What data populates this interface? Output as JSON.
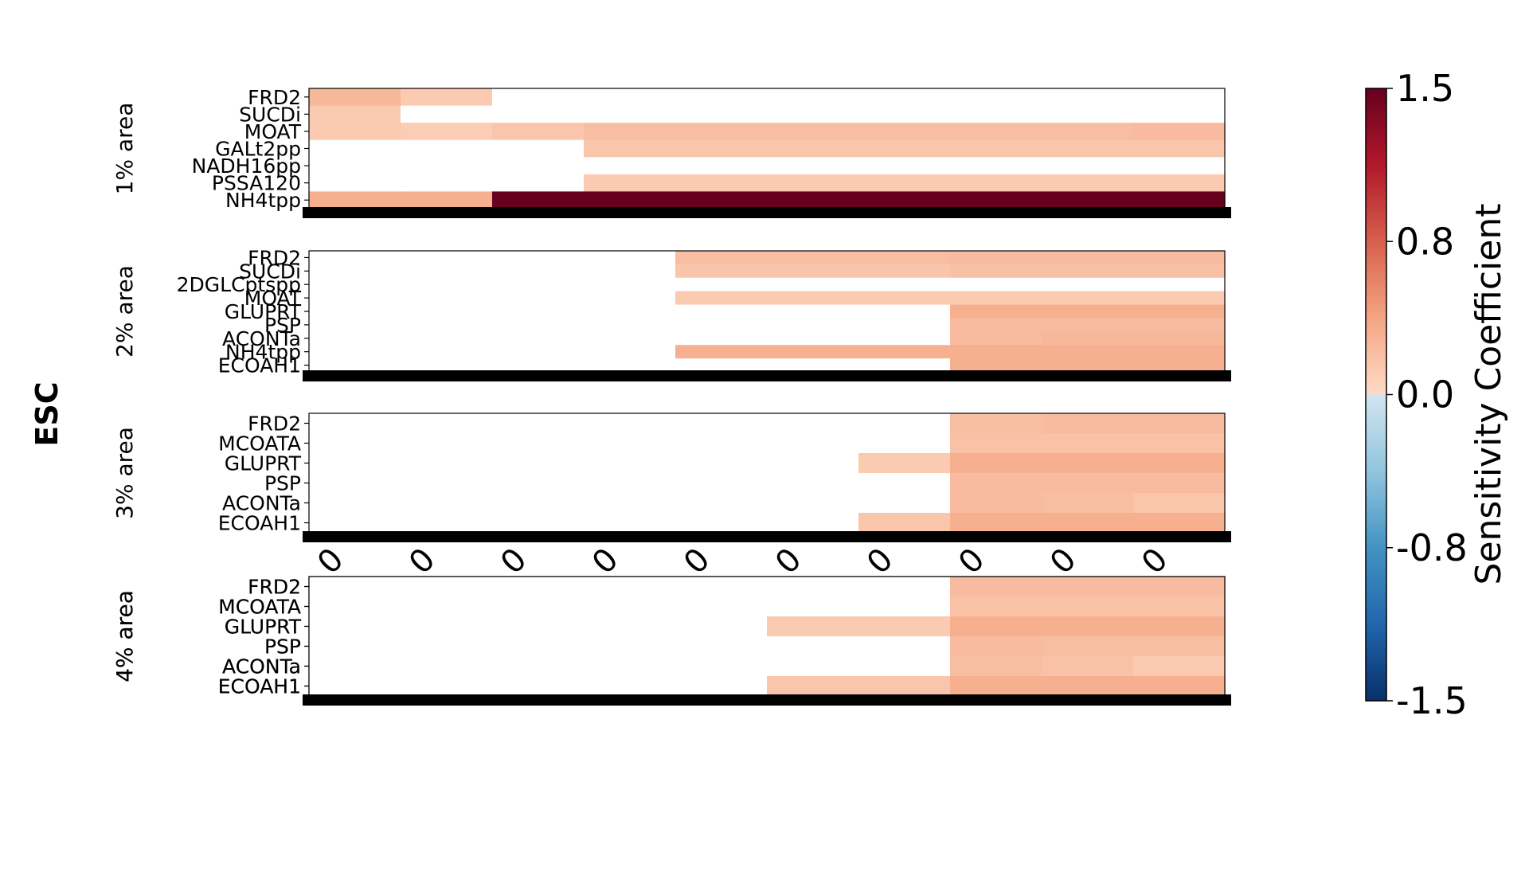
{
  "figure": {
    "row_title": "ESC"
  },
  "colorbar": {
    "label": "Sensitivity Coefficient",
    "range": [
      -1.5,
      1.5
    ],
    "ticks": [
      "1.5",
      "0.8",
      "0.0",
      "-0.8",
      "-1.5"
    ],
    "colors_negative": [
      "#08306b",
      "#2166ac",
      "#4393c3",
      "#92c5de",
      "#d1e5f0"
    ],
    "colors_positive": [
      "#fddbc7",
      "#f4a582",
      "#d6604d",
      "#b2182b",
      "#67001f"
    ]
  },
  "x_tick_labels": [
    "0",
    "0",
    "0",
    "0",
    "0",
    "0",
    "0",
    "0",
    "0",
    "0"
  ],
  "chart_data": [
    {
      "type": "heatmap",
      "ylabel": "1% area",
      "columns": 10,
      "rows": [
        "FRD2",
        "SUCDi",
        "MOAT",
        "GALt2pp",
        "NADH16pp",
        "PSSA120",
        "NH4tpp"
      ],
      "values": [
        [
          0.25,
          0.12,
          0,
          0,
          0,
          0,
          0,
          0,
          0,
          0
        ],
        [
          0.12,
          0,
          0,
          0,
          0,
          0,
          0,
          0,
          0,
          0
        ],
        [
          0.12,
          0.1,
          0.15,
          0.2,
          0.2,
          0.2,
          0.2,
          0.2,
          0.2,
          0.22
        ],
        [
          0,
          0,
          0,
          0.15,
          0.15,
          0.15,
          0.15,
          0.15,
          0.15,
          0.15
        ],
        [
          0,
          0,
          0,
          0,
          0,
          0,
          0,
          0,
          0,
          0
        ],
        [
          0,
          0,
          0,
          0.12,
          0.12,
          0.12,
          0.12,
          0.12,
          0.12,
          0.12
        ],
        [
          0.3,
          0.3,
          1.5,
          1.5,
          1.5,
          1.5,
          1.5,
          1.5,
          1.5,
          1.5
        ]
      ]
    },
    {
      "type": "heatmap",
      "ylabel": "2% area",
      "columns": 10,
      "rows": [
        "FRD2",
        "SUCDi",
        "2DGLCptspp",
        "MOAT",
        "GLUPRT",
        "PSP",
        "ACONTa",
        "NH4tpp",
        "ECOAH1"
      ],
      "values": [
        [
          0,
          0,
          0,
          0,
          0.2,
          0.2,
          0.2,
          0.22,
          0.22,
          0.22
        ],
        [
          0,
          0,
          0,
          0,
          0.15,
          0.15,
          0.15,
          0.18,
          0.18,
          0.18
        ],
        [
          0,
          0,
          0,
          0,
          0,
          0,
          0,
          0,
          0,
          0
        ],
        [
          0,
          0,
          0,
          0,
          0.12,
          0.12,
          0.12,
          0.12,
          0.12,
          0.12
        ],
        [
          0,
          0,
          0,
          0,
          0,
          0,
          0,
          0.3,
          0.3,
          0.3
        ],
        [
          0,
          0,
          0,
          0,
          0,
          0,
          0,
          0.22,
          0.22,
          0.22
        ],
        [
          0,
          0,
          0,
          0,
          0,
          0,
          0,
          0.22,
          0.25,
          0.25
        ],
        [
          0,
          0,
          0,
          0,
          0.3,
          0.3,
          0.3,
          0.3,
          0.3,
          0.3
        ],
        [
          0,
          0,
          0,
          0,
          0,
          0,
          0,
          0.3,
          0.3,
          0.3
        ]
      ]
    },
    {
      "type": "heatmap",
      "ylabel": "3% area",
      "columns": 10,
      "rows": [
        "FRD2",
        "MCOATA",
        "GLUPRT",
        "PSP",
        "ACONTa",
        "ECOAH1"
      ],
      "values": [
        [
          0,
          0,
          0,
          0,
          0,
          0,
          0,
          0.2,
          0.22,
          0.22
        ],
        [
          0,
          0,
          0,
          0,
          0,
          0,
          0,
          0.18,
          0.18,
          0.18
        ],
        [
          0,
          0,
          0,
          0,
          0,
          0,
          0.12,
          0.3,
          0.3,
          0.3
        ],
        [
          0,
          0,
          0,
          0,
          0,
          0,
          0,
          0.22,
          0.22,
          0.22
        ],
        [
          0,
          0,
          0,
          0,
          0,
          0,
          0,
          0.22,
          0.2,
          0.15
        ],
        [
          0,
          0,
          0,
          0,
          0,
          0,
          0.15,
          0.3,
          0.3,
          0.3
        ]
      ]
    },
    {
      "type": "heatmap",
      "ylabel": "4% area",
      "columns": 10,
      "rows": [
        "FRD2",
        "MCOATA",
        "GLUPRT",
        "PSP",
        "ACONTa",
        "ECOAH1"
      ],
      "values": [
        [
          0,
          0,
          0,
          0,
          0,
          0,
          0,
          0.22,
          0.22,
          0.22
        ],
        [
          0,
          0,
          0,
          0,
          0,
          0,
          0,
          0.18,
          0.18,
          0.18
        ],
        [
          0,
          0,
          0,
          0,
          0,
          0.12,
          0.12,
          0.3,
          0.3,
          0.3
        ],
        [
          0,
          0,
          0,
          0,
          0,
          0,
          0,
          0.22,
          0.2,
          0.2
        ],
        [
          0,
          0,
          0,
          0,
          0,
          0,
          0,
          0.2,
          0.18,
          0.12
        ],
        [
          0,
          0,
          0,
          0,
          0,
          0.15,
          0.15,
          0.3,
          0.3,
          0.3
        ]
      ]
    }
  ]
}
